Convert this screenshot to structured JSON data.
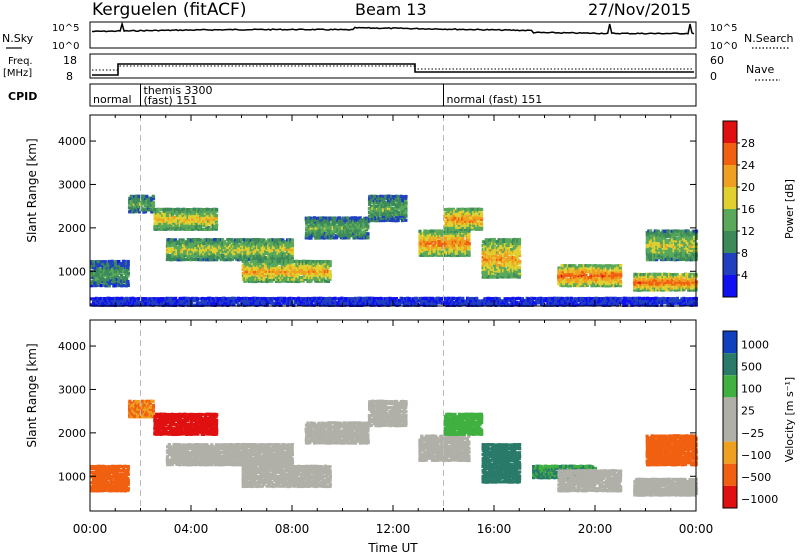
{
  "header": {
    "station": "Kerguelen (fitACF)",
    "beam": "Beam 13",
    "date": "27/Nov/2015"
  },
  "labels": {
    "nsky": "N.Sky",
    "nsearch": "N.Search",
    "freq": "Freq.",
    "freq_unit": "[MHz]",
    "nave": "Nave",
    "cpid": "CPID",
    "nsky_ticks": [
      "10^5",
      "10^0"
    ],
    "freq_ticks": [
      "18",
      "8"
    ],
    "nave_ticks": [
      "60",
      "0"
    ]
  },
  "cpid_segments": [
    {
      "start_h": 0,
      "end_h": 2,
      "label": "normal"
    },
    {
      "start_h": 2,
      "end_h": 14,
      "label": "themis 3300",
      "label2": "(fast) 151"
    },
    {
      "start_h": 14,
      "end_h": 24,
      "label": "normal (fast) 151"
    }
  ],
  "chart_data": [
    {
      "type": "heatmap",
      "name": "power",
      "ylabel": "Slant Range [km]",
      "xlabel": "",
      "yticks": [
        1000,
        2000,
        3000,
        4000
      ],
      "ylim": [
        200,
        4600
      ],
      "xlim": [
        0,
        24
      ],
      "colorbar": {
        "label": "Power [dB]",
        "ticks": [
          4,
          8,
          12,
          16,
          20,
          24,
          28
        ],
        "range": [
          0,
          32
        ]
      },
      "bands": [
        {
          "t0": 0,
          "t1": 1.5,
          "r0": 700,
          "r1": 1300,
          "level": 12
        },
        {
          "t0": 1.5,
          "t1": 2.5,
          "r0": 2400,
          "r1": 2800,
          "level": 14
        },
        {
          "t0": 2.5,
          "t1": 5,
          "r0": 2000,
          "r1": 2500,
          "level": 20
        },
        {
          "t0": 3,
          "t1": 8,
          "r0": 1300,
          "r1": 1800,
          "level": 18
        },
        {
          "t0": 6,
          "t1": 9.5,
          "r0": 800,
          "r1": 1300,
          "level": 22
        },
        {
          "t0": 8.5,
          "t1": 11,
          "r0": 1800,
          "r1": 2300,
          "level": 14
        },
        {
          "t0": 11,
          "t1": 12.5,
          "r0": 2200,
          "r1": 2800,
          "level": 14
        },
        {
          "t0": 13,
          "t1": 15,
          "r0": 1400,
          "r1": 2000,
          "level": 24
        },
        {
          "t0": 14,
          "t1": 15.5,
          "r0": 2000,
          "r1": 2500,
          "level": 24
        },
        {
          "t0": 15.5,
          "t1": 17,
          "r0": 900,
          "r1": 1800,
          "level": 22
        },
        {
          "t0": 18.5,
          "t1": 21,
          "r0": 700,
          "r1": 1200,
          "level": 26
        },
        {
          "t0": 21.5,
          "t1": 24,
          "r0": 600,
          "r1": 1000,
          "level": 26
        },
        {
          "t0": 22,
          "t1": 24,
          "r0": 1300,
          "r1": 2000,
          "level": 18
        },
        {
          "t0": 0,
          "t1": 24,
          "r0": 250,
          "r1": 450,
          "level": 6
        }
      ]
    },
    {
      "type": "heatmap",
      "name": "velocity",
      "ylabel": "Slant Range [km]",
      "xlabel": "Time UT",
      "xticks": [
        "00:00",
        "04:00",
        "08:00",
        "12:00",
        "16:00",
        "20:00",
        "00:00"
      ],
      "yticks": [
        1000,
        2000,
        3000,
        4000
      ],
      "ylim": [
        200,
        4600
      ],
      "xlim": [
        0,
        24
      ],
      "colorbar": {
        "label": "Velocity [m s⁻¹]",
        "ticks": [
          "1000",
          "500",
          "100",
          "25",
          "−25",
          "−100",
          "−500",
          "−1000"
        ]
      },
      "bands": [
        {
          "t0": 0,
          "t1": 1.5,
          "r0": 700,
          "r1": 1300,
          "vel": -300
        },
        {
          "t0": 1.5,
          "t1": 2.5,
          "r0": 2400,
          "r1": 2800,
          "vel": -150
        },
        {
          "t0": 2.5,
          "t1": 5,
          "r0": 2000,
          "r1": 2500,
          "vel": -600
        },
        {
          "t0": 3,
          "t1": 8,
          "r0": 1300,
          "r1": 1800,
          "vel": 0
        },
        {
          "t0": 6,
          "t1": 9.5,
          "r0": 800,
          "r1": 1300,
          "vel": 0
        },
        {
          "t0": 8.5,
          "t1": 11,
          "r0": 1800,
          "r1": 2300,
          "vel": 0
        },
        {
          "t0": 11,
          "t1": 12.5,
          "r0": 2200,
          "r1": 2800,
          "vel": 0
        },
        {
          "t0": 13,
          "t1": 15,
          "r0": 1400,
          "r1": 2000,
          "vel": 0
        },
        {
          "t0": 14,
          "t1": 15.5,
          "r0": 2000,
          "r1": 2500,
          "vel": 200
        },
        {
          "t0": 15.5,
          "t1": 17,
          "r0": 900,
          "r1": 1800,
          "vel": 600
        },
        {
          "t0": 17.5,
          "t1": 20,
          "r0": 1000,
          "r1": 1300,
          "vel": 300
        },
        {
          "t0": 18.5,
          "t1": 21,
          "r0": 700,
          "r1": 1200,
          "vel": 0
        },
        {
          "t0": 21.5,
          "t1": 24,
          "r0": 600,
          "r1": 1000,
          "vel": 0
        },
        {
          "t0": 22,
          "t1": 24,
          "r0": 1300,
          "r1": 2000,
          "vel": -300
        }
      ]
    }
  ],
  "colors": {
    "power": [
      "#1010f0",
      "#2040c0",
      "#3c8a5a",
      "#5aa85a",
      "#e0d030",
      "#f0a020",
      "#f06010",
      "#e01010"
    ],
    "velocity": [
      "#1040c0",
      "#2a7a6a",
      "#40b040",
      "#b0b0a8",
      "#b0b0a8",
      "#f0a020",
      "#f06010",
      "#e01010"
    ]
  }
}
